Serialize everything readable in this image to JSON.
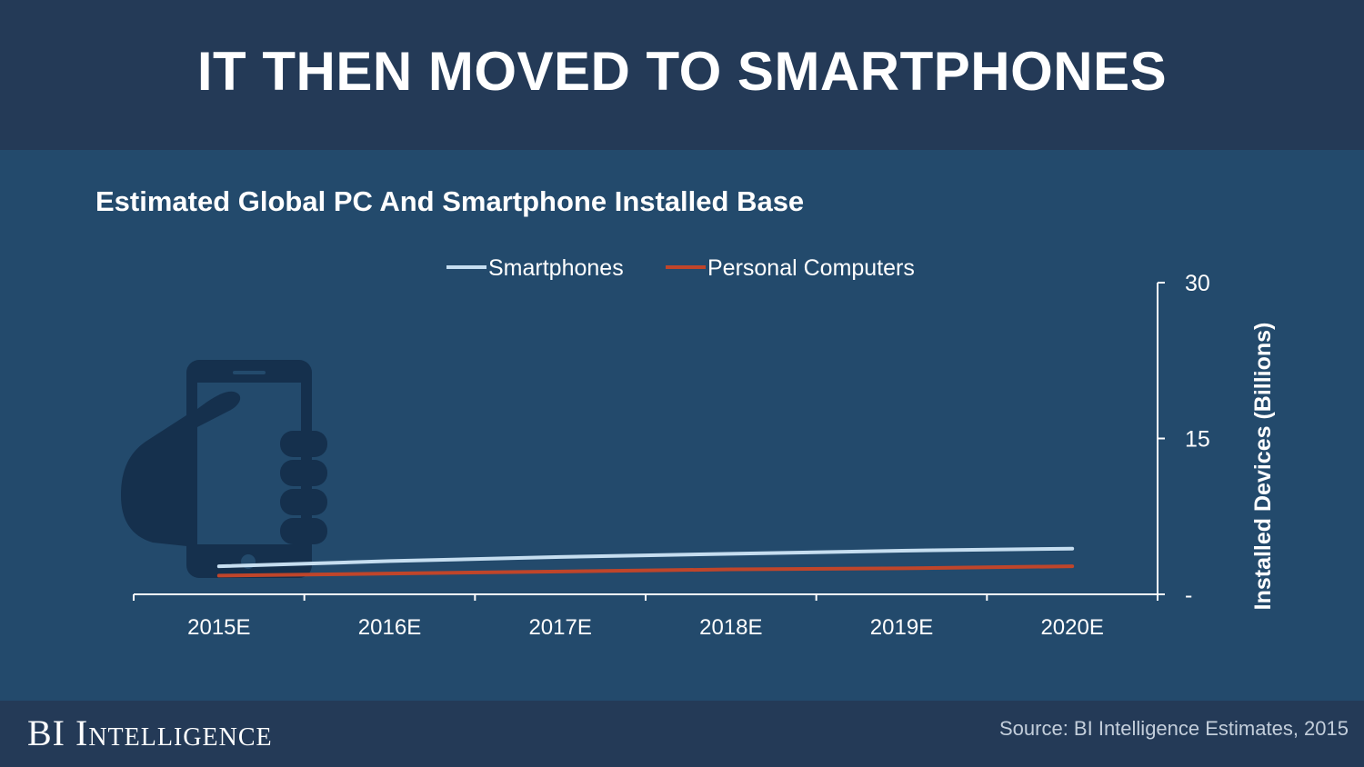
{
  "header": {
    "headline": "IT THEN MOVED TO SMARTPHONES"
  },
  "colors": {
    "background": "#234a6c",
    "header_band": "#243a57",
    "smartphones": "#c6def0",
    "personal_computers": "#c0452a",
    "icon": "#15304d",
    "axis": "#ffffff"
  },
  "footer": {
    "brand": "BI Intelligence",
    "source": "Source: BI Intelligence Estimates, 2015"
  },
  "decor": {
    "icon": "hand-holding-smartphone-icon"
  },
  "chart_data": {
    "type": "line",
    "title": "Estimated Global PC And Smartphone Installed Base",
    "categories": [
      "2015E",
      "2016E",
      "2017E",
      "2018E",
      "2019E",
      "2020E"
    ],
    "series": [
      {
        "name": "Smartphones",
        "values": [
          2.7,
          3.2,
          3.6,
          3.9,
          4.2,
          4.4
        ]
      },
      {
        "name": "Personal Computers",
        "values": [
          1.8,
          2.0,
          2.2,
          2.4,
          2.5,
          2.7
        ]
      }
    ],
    "xlabel": "",
    "ylabel": "Installed Devices (Billions)",
    "ylim": [
      0,
      30
    ],
    "y_ticks": [
      {
        "value": 0,
        "label": "-"
      },
      {
        "value": 15,
        "label": "15"
      },
      {
        "value": 30,
        "label": "30"
      }
    ],
    "y_axis_side": "right",
    "legend_position": "top-center",
    "grid": false
  }
}
